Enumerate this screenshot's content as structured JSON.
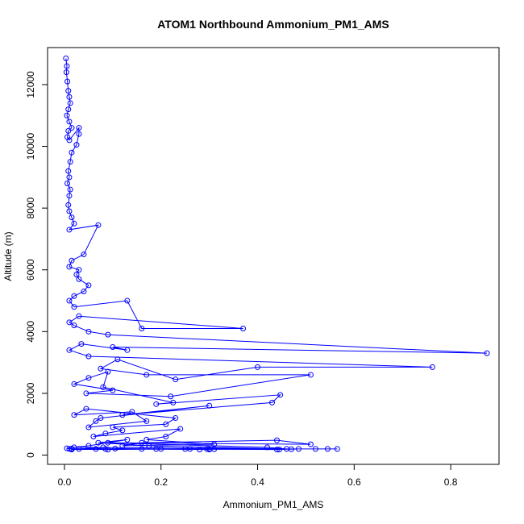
{
  "chart_data": {
    "type": "scatter",
    "title": "ATOM1 Northbound Ammonium_PM1_AMS",
    "xlabel": "Ammonium_PM1_AMS",
    "ylabel": "Altitude (m)",
    "xlim": [
      -0.035,
      0.9
    ],
    "ylim": [
      -300,
      13200
    ],
    "x_ticks": [
      0.0,
      0.2,
      0.4,
      0.6,
      0.8
    ],
    "x_tick_labels": [
      "0.0",
      "0.2",
      "0.4",
      "0.6",
      "0.8"
    ],
    "y_ticks": [
      0,
      2000,
      4000,
      6000,
      8000,
      10000,
      12000
    ],
    "y_tick_labels": [
      "0",
      "2000",
      "4000",
      "6000",
      "8000",
      "10000",
      "12000"
    ],
    "grid": false,
    "legend": "none",
    "marker": "open-circle",
    "connected": true,
    "colors": {
      "series": "#0000ff",
      "axes": "#000000",
      "background": "#ffffff"
    },
    "series": [
      {
        "x": [
          0.003,
          0.005,
          0.004,
          0.006,
          0.008,
          0.01,
          0.012,
          0.008,
          0.005,
          0.01,
          0.015,
          0.008,
          0.006,
          0.01,
          0.03,
          0.03,
          0.025,
          0.015,
          0.012,
          0.008,
          0.01,
          0.006,
          0.012,
          0.01,
          0.008,
          0.01,
          0.015,
          0.02,
          0.01,
          0.07,
          0.04,
          0.015,
          0.01,
          0.03,
          0.025,
          0.03,
          0.05,
          0.04,
          0.02,
          0.01,
          0.02,
          0.13,
          0.16,
          0.37,
          0.03,
          0.01,
          0.02,
          0.05,
          0.09,
          0.875,
          0.1,
          0.13,
          0.035,
          0.01,
          0.05,
          0.762,
          0.4,
          0.23,
          0.11,
          0.075,
          0.17,
          0.51,
          0.22,
          0.045,
          0.1,
          0.02,
          0.05,
          0.09,
          0.08,
          0.225,
          0.19,
          0.447,
          0.43,
          0.12,
          0.3,
          0.075,
          0.065,
          0.05,
          0.17,
          0.14,
          0.02,
          0.045,
          0.23,
          0.21,
          0.1,
          0.12,
          0.085,
          0.06,
          0.24,
          0.21,
          0.17,
          0.31,
          0.12,
          0.16,
          0.44,
          0.51,
          0.09,
          0.42,
          0.46,
          0.175,
          0.07,
          0.13,
          0.05,
          0.02,
          0.52,
          0.545,
          0.565,
          0.01,
          0.005,
          0.015,
          0.44,
          0.485,
          0.47,
          0.3,
          0.31,
          0.105,
          0.19,
          0.28,
          0.16,
          0.25,
          0.09,
          0.065,
          0.08,
          0.03,
          0.015,
          0.2,
          0.26,
          0.295,
          0.445,
          0.085,
          0.3
        ],
        "y": [
          12850,
          12600,
          12400,
          12100,
          11800,
          11600,
          11400,
          11200,
          11000,
          10800,
          10600,
          10500,
          10300,
          10200,
          10600,
          10400,
          10050,
          9800,
          9500,
          9200,
          9000,
          8800,
          8600,
          8400,
          8100,
          7900,
          7700,
          7500,
          7300,
          7450,
          6500,
          6300,
          6100,
          6000,
          5850,
          5700,
          5500,
          5300,
          5150,
          5000,
          4800,
          5000,
          4100,
          4100,
          4500,
          4300,
          4200,
          4000,
          3900,
          3300,
          3500,
          3400,
          3600,
          3400,
          3200,
          2850,
          2850,
          2450,
          3100,
          2800,
          2600,
          2600,
          1900,
          2000,
          2100,
          2300,
          2500,
          2700,
          2200,
          1700,
          1650,
          1950,
          1700,
          1300,
          1600,
          1200,
          1100,
          900,
          1100,
          1400,
          1300,
          1500,
          1200,
          1000,
          900,
          800,
          700,
          600,
          850,
          600,
          500,
          350,
          300,
          400,
          480,
          350,
          400,
          250,
          200,
          300,
          400,
          500,
          300,
          250,
          200,
          200,
          200,
          200,
          220,
          210,
          180,
          200,
          190,
          200,
          190,
          210,
          200,
          180,
          200,
          200,
          180,
          200,
          250,
          200,
          180,
          200,
          200,
          200,
          180,
          200,
          180
        ]
      }
    ]
  }
}
